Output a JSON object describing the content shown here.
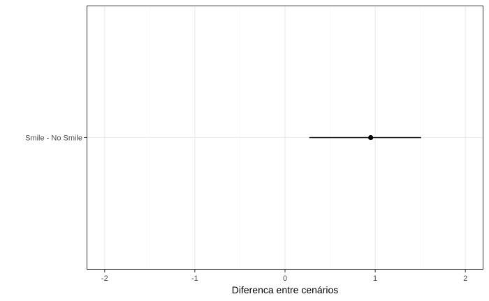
{
  "chart_data": {
    "type": "scatter",
    "title": "",
    "xlabel": "Diferenca entre cenários",
    "ylabel": "",
    "xlim": [
      -2.2,
      2.2
    ],
    "x_ticks": [
      -2,
      -1,
      0,
      1,
      2
    ],
    "x_tick_labels": [
      "-2",
      "-1",
      "0",
      "1",
      "2"
    ],
    "categories": [
      "Smile - No Smile"
    ],
    "points": [
      {
        "category": "Smile - No Smile",
        "estimate": 0.95,
        "lower": 0.27,
        "upper": 1.51
      }
    ],
    "grid": true,
    "legend": "none",
    "colors": {
      "panel_border": "#333333",
      "grid_major": "#ebebeb",
      "grid_minor": "#f5f5f5",
      "point": "#000000",
      "tick": "#333333"
    }
  }
}
